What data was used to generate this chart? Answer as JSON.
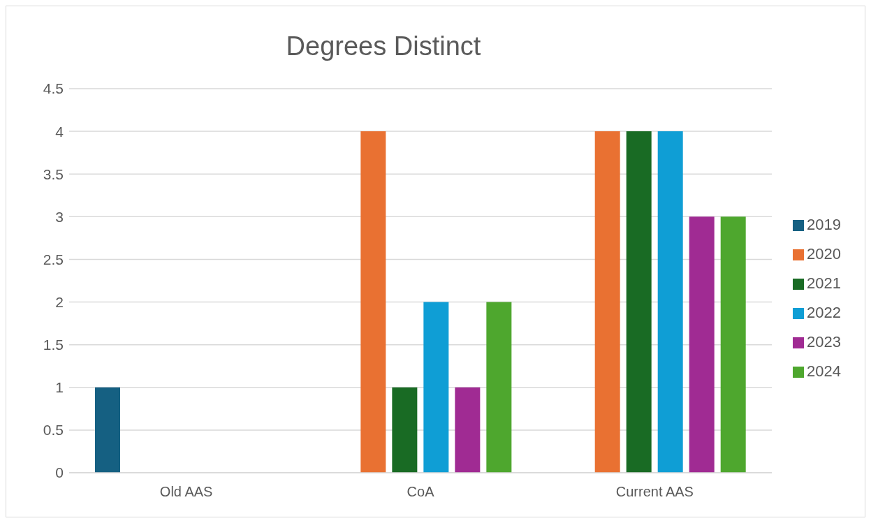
{
  "chart_data": {
    "type": "bar",
    "title": "Degrees Distinct",
    "categories": [
      "Old AAS",
      "CoA",
      "Current AAS"
    ],
    "series": [
      {
        "name": "2019",
        "color": "#156082",
        "values": [
          1,
          null,
          null
        ]
      },
      {
        "name": "2020",
        "color": "#e97132",
        "values": [
          null,
          4,
          4
        ]
      },
      {
        "name": "2021",
        "color": "#196b24",
        "values": [
          null,
          1,
          4
        ]
      },
      {
        "name": "2022",
        "color": "#0f9ed5",
        "values": [
          null,
          2,
          4
        ]
      },
      {
        "name": "2023",
        "color": "#a02b93",
        "values": [
          null,
          1,
          3
        ]
      },
      {
        "name": "2024",
        "color": "#4ea72e",
        "values": [
          null,
          2,
          3
        ]
      }
    ],
    "ylim": [
      0,
      4.5
    ],
    "yticks": [
      0,
      0.5,
      1,
      1.5,
      2,
      2.5,
      3,
      3.5,
      4,
      4.5
    ],
    "grid": "y",
    "legend": "right"
  }
}
